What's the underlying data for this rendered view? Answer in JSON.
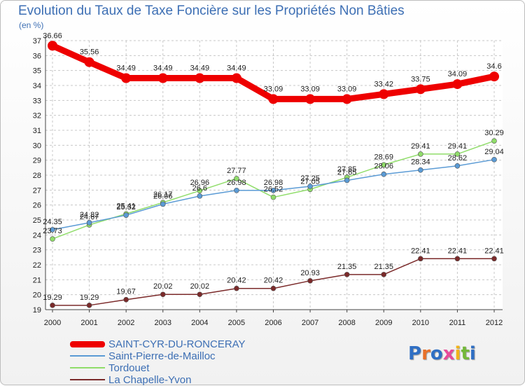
{
  "chart_data": {
    "type": "line",
    "title": "Evolution du Taux de Taxe Foncière sur les Propriétés Non Bâties",
    "ylabel": "(en %)",
    "xlabel": "",
    "x": [
      "2000",
      "2001",
      "2002",
      "2003",
      "2004",
      "2005",
      "2006",
      "2007",
      "2008",
      "2009",
      "2010",
      "2011",
      "2012"
    ],
    "ylim": [
      19,
      37
    ],
    "yticks": [
      19,
      20,
      21,
      22,
      23,
      24,
      25,
      26,
      27,
      28,
      29,
      30,
      31,
      32,
      33,
      34,
      35,
      36,
      37
    ],
    "grid": true,
    "legend_position": "bottom-left",
    "series": [
      {
        "name": "SAINT-CYR-DU-RONCERAY",
        "color": "#ee0000",
        "values": [
          36.66,
          35.56,
          34.49,
          34.49,
          34.49,
          34.49,
          33.09,
          33.09,
          33.09,
          33.42,
          33.75,
          34.09,
          34.6
        ],
        "labels": [
          "36.66",
          "35.56",
          "34.49",
          "34.49",
          "34.49",
          "34.49",
          "33.09",
          "33.09",
          "33.09",
          "33.42",
          "33.75",
          "34.09",
          "34.6"
        ]
      },
      {
        "name": "Saint-Pierre-de-Mailloc",
        "color": "#5b9bd5",
        "values": [
          24.35,
          24.82,
          25.32,
          26.06,
          26.6,
          26.98,
          26.98,
          27.25,
          27.65,
          28.06,
          28.34,
          28.62,
          29.04
        ],
        "labels": [
          "24.35",
          "24.82",
          "25.32",
          "26.06",
          "26.6",
          "26.98",
          "26.98",
          "27.25",
          "27.65",
          "28.06",
          "28.34",
          "28.62",
          "29.04"
        ]
      },
      {
        "name": "Tordouet",
        "color": "#90dd6a",
        "values": [
          23.73,
          24.67,
          25.41,
          26.17,
          26.96,
          27.77,
          26.52,
          27.05,
          27.85,
          28.69,
          29.41,
          29.41,
          30.29
        ],
        "labels": [
          "23.73",
          "24.67",
          "25.41",
          "26.17",
          "26.96",
          "27.77",
          "26.52",
          "27.05",
          "27.85",
          "28.69",
          "29.41",
          "29.41",
          "30.29"
        ]
      },
      {
        "name": "La Chapelle-Yvon",
        "color": "#7b2a2a",
        "values": [
          19.29,
          19.29,
          19.67,
          20.02,
          20.02,
          20.42,
          20.42,
          20.93,
          21.35,
          21.35,
          22.41,
          22.41,
          22.41
        ],
        "labels": [
          "19.29",
          "19.29",
          "19.67",
          "20.02",
          "20.02",
          "20.42",
          "20.42",
          "20.93",
          "21.35",
          "21.35",
          "22.41",
          "22.41",
          "22.41"
        ]
      }
    ]
  },
  "logo": {
    "letters": [
      "P",
      "r",
      "o",
      "x",
      "i",
      "t",
      "i"
    ],
    "colors": [
      "#2f6fc4",
      "#e8712a",
      "#2f6fc4",
      "#e84a9a",
      "#f2b319",
      "#74b83a",
      "#2f6fc4"
    ]
  }
}
